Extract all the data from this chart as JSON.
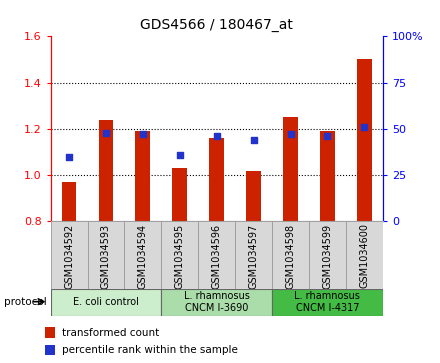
{
  "title": "GDS4566 / 180467_at",
  "samples": [
    "GSM1034592",
    "GSM1034593",
    "GSM1034594",
    "GSM1034595",
    "GSM1034596",
    "GSM1034597",
    "GSM1034598",
    "GSM1034599",
    "GSM1034600"
  ],
  "transformed_counts": [
    0.97,
    1.24,
    1.19,
    1.03,
    1.16,
    1.02,
    1.25,
    1.19,
    1.5
  ],
  "percentile_ranks": [
    35,
    48,
    47,
    36,
    46,
    44,
    47,
    46,
    51
  ],
  "bar_bottom": 0.8,
  "ylim_left": [
    0.8,
    1.6
  ],
  "ylim_right": [
    0,
    100
  ],
  "yticks_left": [
    0.8,
    1.0,
    1.2,
    1.4,
    1.6
  ],
  "yticks_right": [
    0,
    25,
    50,
    75,
    100
  ],
  "bar_color": "#cc2200",
  "dot_color": "#2233cc",
  "proto_colors": [
    "#cceecc",
    "#aaddaa",
    "#44bb44"
  ],
  "proto_labels": [
    "E. coli control",
    "L. rhamnosus\nCNCM I-3690",
    "L. rhamnosus\nCNCM I-4317"
  ],
  "proto_ranges": [
    [
      0,
      3
    ],
    [
      3,
      6
    ],
    [
      6,
      9
    ]
  ],
  "legend_red_label": "transformed count",
  "legend_blue_label": "percentile rank within the sample",
  "cell_bg": "#d8d8d8",
  "cell_edge": "#999999"
}
